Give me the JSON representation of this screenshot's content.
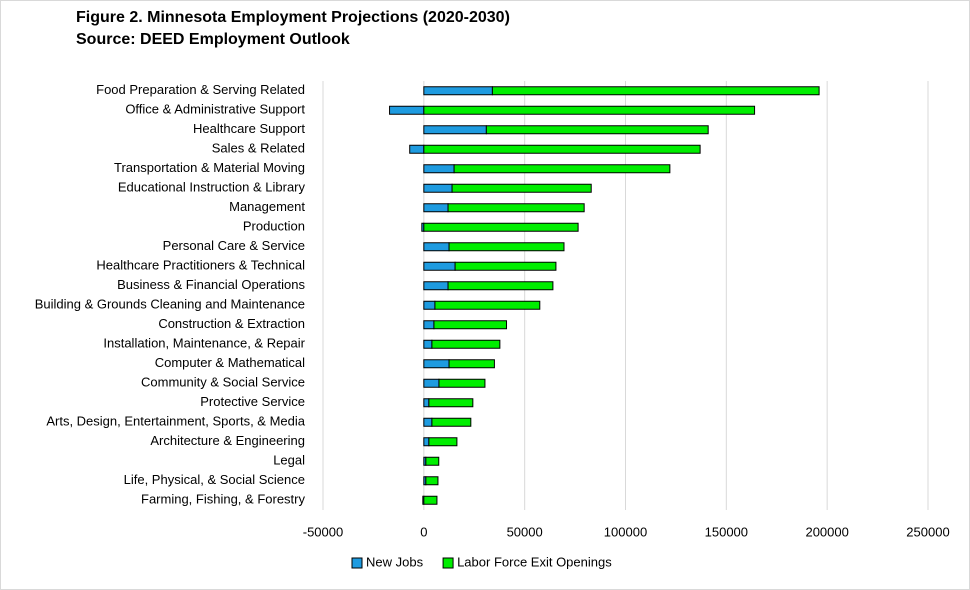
{
  "chart_data": {
    "type": "stacked-barh",
    "title": "Figure 2. Minnesota Employment Projections (2020-2030)",
    "subtitle": "Source: DEED Employment Outlook",
    "categories": [
      "Food Preparation & Serving Related",
      "Office & Administrative Support",
      "Healthcare Support",
      "Sales & Related",
      "Transportation & Material Moving",
      "Educational Instruction & Library",
      "Management",
      "Production",
      "Personal Care & Service",
      "Healthcare Practitioners & Technical",
      "Business & Financial Operations",
      "Building & Grounds Cleaning and Maintenance",
      "Construction & Extraction",
      "Installation, Maintenance, & Repair",
      "Computer & Mathematical",
      "Community & Social Service",
      "Protective Service",
      "Arts, Design, Entertainment, Sports, & Media",
      "Architecture & Engineering",
      "Legal",
      "Life, Physical, & Social Science",
      "Farming, Fishing, & Forestry"
    ],
    "series": [
      {
        "name": "New Jobs",
        "color": "#1e9be0",
        "values": [
          34000,
          -17000,
          31000,
          -7000,
          15000,
          14000,
          12000,
          -1000,
          12500,
          15500,
          12000,
          5500,
          5000,
          4000,
          12500,
          7500,
          2500,
          4000,
          2500,
          1000,
          1000,
          -500
        ]
      },
      {
        "name": "Labor Force Exit Openings",
        "color": "#00ee00",
        "values": [
          162000,
          164000,
          110000,
          137000,
          107000,
          69000,
          67500,
          76500,
          57000,
          50000,
          52000,
          52000,
          36000,
          33700,
          22500,
          22800,
          21800,
          19300,
          13900,
          6400,
          6000,
          6500
        ]
      }
    ],
    "xlim": [
      -50000,
      250000
    ],
    "xticks": [
      -50000,
      0,
      50000,
      100000,
      150000,
      200000,
      250000
    ],
    "grid": true,
    "legend": "bottom"
  }
}
